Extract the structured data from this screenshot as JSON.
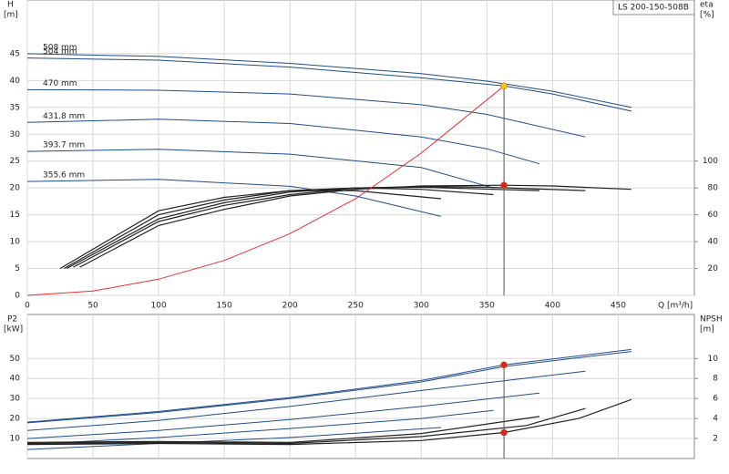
{
  "chart_data": [
    {
      "type": "line",
      "annotation": "LS 200-150-508B",
      "ylabel": [
        "H",
        "[m]"
      ],
      "y2label": [
        "eta",
        "[%]"
      ],
      "xlabel": "Q [m³/h]",
      "xlim": [
        0,
        508
      ],
      "xticks": [
        0,
        50,
        100,
        150,
        200,
        250,
        300,
        350,
        400,
        450
      ],
      "ylim": [
        0,
        55
      ],
      "yticks": [
        0,
        5,
        10,
        15,
        20,
        25,
        30,
        35,
        40,
        45
      ],
      "y2lim": [
        0,
        220
      ],
      "y2ticks": [
        20,
        40,
        60,
        80,
        100
      ],
      "grid": true,
      "series": [
        {
          "name": "508 mm",
          "color": "#1f4e8c",
          "x": [
            0,
            100,
            200,
            300,
            350,
            400,
            460
          ],
          "values": [
            45,
            44.5,
            43.2,
            41.3,
            39.9,
            38,
            35
          ]
        },
        {
          "name": "504 mm",
          "color": "#1f4e8c",
          "x": [
            0,
            100,
            200,
            300,
            363,
            400,
            460
          ],
          "values": [
            44.2,
            43.8,
            42.5,
            40.5,
            39,
            37.5,
            34.3
          ]
        },
        {
          "name": "470 mm",
          "color": "#1f4e8c",
          "x": [
            0,
            100,
            200,
            300,
            350,
            425
          ],
          "values": [
            38.3,
            38.2,
            37.5,
            35.5,
            33.7,
            29.5
          ]
        },
        {
          "name": "431.8 mm",
          "color": "#1f4e8c",
          "x": [
            0,
            100,
            200,
            300,
            350,
            390
          ],
          "values": [
            32.2,
            32.8,
            32,
            29.5,
            27.3,
            24.5
          ]
        },
        {
          "name": "393.7 mm",
          "color": "#1f4e8c",
          "x": [
            0,
            100,
            200,
            300,
            355
          ],
          "values": [
            26.8,
            27.2,
            26.3,
            23.8,
            20
          ]
        },
        {
          "name": "355.6 mm",
          "color": "#1f4e8c",
          "x": [
            0,
            100,
            200,
            250,
            315
          ],
          "values": [
            21.2,
            21.6,
            20.3,
            18.5,
            14.7
          ]
        },
        {
          "color": "#222222",
          "axis": "y2",
          "x": [
            40,
            100,
            150,
            200,
            250,
            300,
            363,
            400,
            460
          ],
          "values": [
            21,
            52,
            64,
            74,
            79,
            81.5,
            82,
            81.5,
            79
          ]
        },
        {
          "color": "#222222",
          "axis": "y2",
          "x": [
            35,
            100,
            150,
            200,
            250,
            300,
            350,
            425
          ],
          "values": [
            21,
            55,
            67,
            75,
            80,
            81,
            80.5,
            78
          ]
        },
        {
          "color": "#222222",
          "axis": "y2",
          "x": [
            30,
            100,
            150,
            200,
            250,
            300,
            390
          ],
          "values": [
            20,
            57,
            69,
            77,
            80,
            80.5,
            78
          ]
        },
        {
          "color": "#222222",
          "axis": "y2",
          "x": [
            28,
            100,
            150,
            200,
            250,
            300,
            355
          ],
          "values": [
            20,
            60,
            71,
            78,
            80,
            79,
            75
          ]
        },
        {
          "color": "#222222",
          "axis": "y2",
          "x": [
            25,
            100,
            150,
            200,
            250,
            315
          ],
          "values": [
            20,
            63,
            73,
            78,
            78,
            72
          ]
        },
        {
          "color": "#e83030",
          "x": [
            0,
            50,
            100,
            150,
            200,
            250,
            300,
            363
          ],
          "values": [
            0,
            0.8,
            3,
            6.5,
            11.5,
            18,
            26.5,
            39
          ]
        }
      ],
      "markers": [
        {
          "x": 363,
          "value": 39,
          "color": "#f5c518"
        },
        {
          "x": 363,
          "value": 82,
          "axis": "y2",
          "color": "#e02020"
        }
      ]
    },
    {
      "type": "line",
      "ylabel": [
        "P2",
        "[kW]"
      ],
      "y2label": [
        "NPSH",
        "[m]"
      ],
      "xlim": [
        0,
        508
      ],
      "ylim": [
        0,
        72
      ],
      "yticks": [
        10,
        20,
        30,
        40,
        50
      ],
      "y2lim": [
        0,
        14.4
      ],
      "y2ticks": [
        2,
        4,
        6,
        8,
        10
      ],
      "grid": true,
      "series": [
        {
          "color": "#1f4e8c",
          "x": [
            0,
            100,
            200,
            300,
            363,
            460
          ],
          "values": [
            18.2,
            23.5,
            30.5,
            39,
            46.8,
            54.5
          ]
        },
        {
          "color": "#1f4e8c",
          "x": [
            0,
            100,
            200,
            300,
            363,
            460
          ],
          "values": [
            17.8,
            23,
            30,
            38.3,
            46,
            53.5
          ]
        },
        {
          "color": "#1f4e8c",
          "x": [
            0,
            100,
            200,
            300,
            425
          ],
          "values": [
            14,
            19,
            26,
            34,
            43.6
          ]
        },
        {
          "color": "#1f4e8c",
          "x": [
            0,
            100,
            200,
            300,
            390
          ],
          "values": [
            10,
            14,
            19.5,
            26,
            32.7
          ]
        },
        {
          "color": "#1f4e8c",
          "x": [
            0,
            100,
            200,
            300,
            355
          ],
          "values": [
            7,
            10.5,
            15,
            20,
            24
          ]
        },
        {
          "color": "#1f4e8c",
          "x": [
            0,
            100,
            200,
            315
          ],
          "values": [
            4.5,
            7.5,
            10.5,
            15.5
          ]
        },
        {
          "color": "#222222",
          "axis": "y2",
          "x": [
            0,
            100,
            200,
            300,
            363,
            420,
            460
          ],
          "values": [
            1.4,
            1.5,
            1.4,
            1.8,
            2.6,
            4,
            5.9
          ]
        },
        {
          "color": "#222222",
          "axis": "y2",
          "x": [
            0,
            100,
            200,
            300,
            380,
            425
          ],
          "values": [
            1.5,
            1.6,
            1.5,
            2.2,
            3.3,
            5
          ]
        },
        {
          "color": "#222222",
          "axis": "y2",
          "x": [
            0,
            100,
            200,
            300,
            390
          ],
          "values": [
            1.6,
            1.7,
            1.6,
            2.5,
            4.2
          ]
        }
      ],
      "markers": [
        {
          "x": 363,
          "value": 46.8,
          "color": "#e02020"
        },
        {
          "x": 363,
          "value": 2.6,
          "axis": "y2",
          "color": "#e02020"
        }
      ]
    }
  ]
}
